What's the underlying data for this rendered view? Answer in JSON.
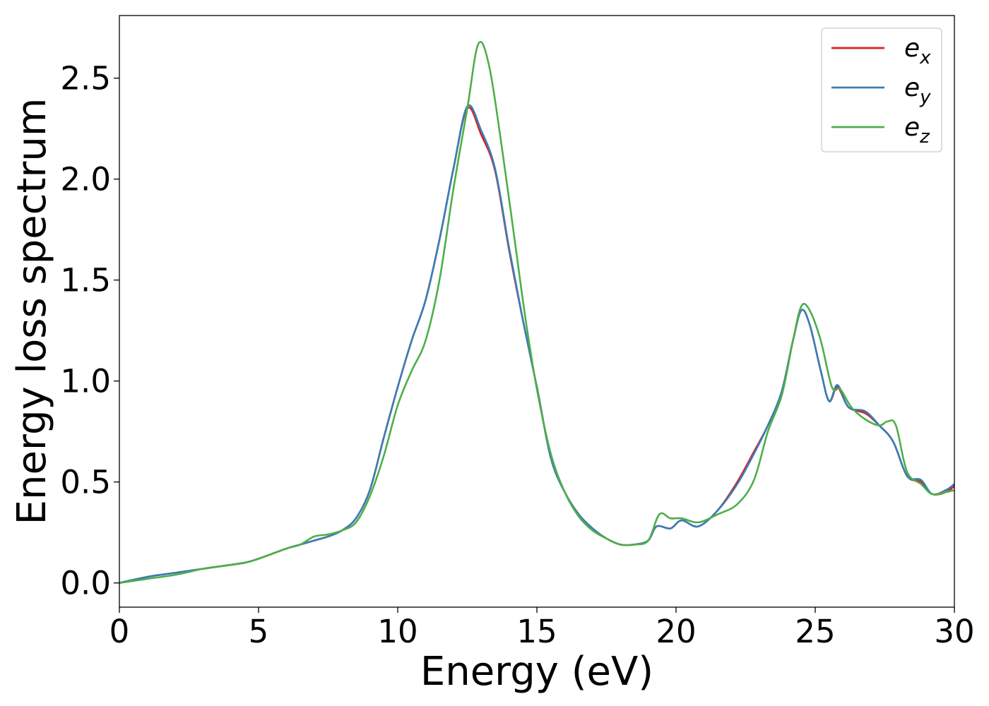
{
  "chart_data": {
    "type": "line",
    "title": "",
    "xlabel": "Energy (eV)",
    "ylabel": "Energy loss spectrum",
    "xlim": [
      0,
      30
    ],
    "ylim": [
      -0.12,
      2.81
    ],
    "xticks": [
      0,
      5,
      10,
      15,
      20,
      25,
      30
    ],
    "xtick_labels": [
      "0",
      "5",
      "10",
      "15",
      "20",
      "25",
      "30"
    ],
    "yticks": [
      0.0,
      0.5,
      1.0,
      1.5,
      2.0,
      2.5
    ],
    "ytick_labels": [
      "0.0",
      "0.5",
      "1.0",
      "1.5",
      "2.0",
      "2.5"
    ],
    "grid": false,
    "legend_position": "top-right",
    "series": [
      {
        "name": "e_x",
        "legend_base": "e",
        "legend_sub": "x",
        "color": "#e41a1c",
        "x": [
          0,
          1,
          2,
          3,
          3.5,
          4.5,
          5,
          6,
          6.5,
          7,
          7.5,
          8,
          8.5,
          9,
          9.5,
          10,
          10.5,
          11,
          11.5,
          12,
          12.5,
          13,
          13.5,
          14,
          14.5,
          15,
          15.5,
          16,
          16.5,
          17,
          17.5,
          18,
          18.5,
          19,
          19.3,
          19.8,
          20.2,
          20.8,
          21.5,
          22.2,
          22.8,
          23.3,
          23.8,
          24.2,
          24.5,
          24.8,
          25.2,
          25.5,
          25.8,
          26.2,
          26.8,
          27.3,
          27.8,
          28.3,
          28.8,
          29.2,
          29.7,
          30
        ],
        "y": [
          0.0,
          0.03,
          0.05,
          0.07,
          0.08,
          0.1,
          0.12,
          0.17,
          0.19,
          0.21,
          0.23,
          0.26,
          0.32,
          0.46,
          0.72,
          0.97,
          1.2,
          1.4,
          1.7,
          2.05,
          2.35,
          2.22,
          2.04,
          1.65,
          1.3,
          0.97,
          0.62,
          0.45,
          0.34,
          0.27,
          0.22,
          0.19,
          0.19,
          0.21,
          0.28,
          0.27,
          0.31,
          0.28,
          0.36,
          0.5,
          0.65,
          0.78,
          0.95,
          1.2,
          1.35,
          1.28,
          1.05,
          0.9,
          0.97,
          0.87,
          0.84,
          0.78,
          0.7,
          0.53,
          0.5,
          0.44,
          0.45,
          0.48
        ]
      },
      {
        "name": "e_y",
        "legend_base": "e",
        "legend_sub": "y",
        "color": "#377eb8",
        "x": [
          0,
          1,
          2,
          3,
          3.5,
          4.5,
          5,
          6,
          6.5,
          7,
          7.5,
          8,
          8.5,
          9,
          9.5,
          10,
          10.5,
          11,
          11.5,
          12,
          12.5,
          13,
          13.5,
          14,
          14.5,
          15,
          15.5,
          16,
          16.5,
          17,
          17.5,
          18,
          18.5,
          19,
          19.3,
          19.8,
          20.2,
          20.8,
          21.5,
          22.2,
          22.8,
          23.3,
          23.8,
          24.2,
          24.5,
          24.8,
          25.2,
          25.5,
          25.8,
          26.2,
          26.8,
          27.3,
          27.8,
          28.3,
          28.8,
          29.2,
          29.7,
          30
        ],
        "y": [
          0.0,
          0.03,
          0.05,
          0.07,
          0.08,
          0.1,
          0.12,
          0.17,
          0.19,
          0.21,
          0.23,
          0.26,
          0.32,
          0.46,
          0.72,
          0.97,
          1.2,
          1.4,
          1.7,
          2.05,
          2.36,
          2.24,
          2.05,
          1.66,
          1.3,
          0.97,
          0.62,
          0.45,
          0.34,
          0.27,
          0.22,
          0.19,
          0.19,
          0.21,
          0.28,
          0.27,
          0.31,
          0.28,
          0.36,
          0.49,
          0.64,
          0.78,
          0.95,
          1.2,
          1.35,
          1.28,
          1.05,
          0.9,
          0.98,
          0.87,
          0.85,
          0.78,
          0.7,
          0.53,
          0.51,
          0.44,
          0.46,
          0.49
        ]
      },
      {
        "name": "e_z",
        "legend_base": "e",
        "legend_sub": "z",
        "color": "#4daf4a",
        "x": [
          0,
          1,
          2,
          3,
          3.5,
          4.5,
          5,
          6,
          6.5,
          7,
          7.5,
          8,
          8.5,
          9,
          9.5,
          10,
          10.5,
          11,
          11.5,
          12,
          12.5,
          12.9,
          13.3,
          13.8,
          14.2,
          14.6,
          15,
          15.5,
          16,
          16.5,
          17,
          17.5,
          18,
          18.5,
          19,
          19.4,
          19.8,
          20.2,
          20.8,
          21.5,
          22.2,
          22.8,
          23.3,
          23.8,
          24.2,
          24.5,
          24.8,
          25.2,
          25.6,
          25.9,
          26.3,
          26.8,
          27.3,
          27.6,
          27.9,
          28.3,
          28.8,
          29.2,
          29.7,
          30
        ],
        "y": [
          0.0,
          0.02,
          0.04,
          0.07,
          0.08,
          0.1,
          0.12,
          0.17,
          0.19,
          0.23,
          0.24,
          0.26,
          0.3,
          0.43,
          0.63,
          0.88,
          1.05,
          1.2,
          1.5,
          1.95,
          2.35,
          2.67,
          2.55,
          2.1,
          1.7,
          1.3,
          0.96,
          0.64,
          0.45,
          0.33,
          0.26,
          0.22,
          0.19,
          0.19,
          0.21,
          0.34,
          0.32,
          0.32,
          0.3,
          0.34,
          0.39,
          0.51,
          0.75,
          0.93,
          1.2,
          1.37,
          1.35,
          1.2,
          0.97,
          0.96,
          0.87,
          0.81,
          0.78,
          0.8,
          0.78,
          0.55,
          0.49,
          0.44,
          0.45,
          0.46
        ]
      }
    ]
  }
}
